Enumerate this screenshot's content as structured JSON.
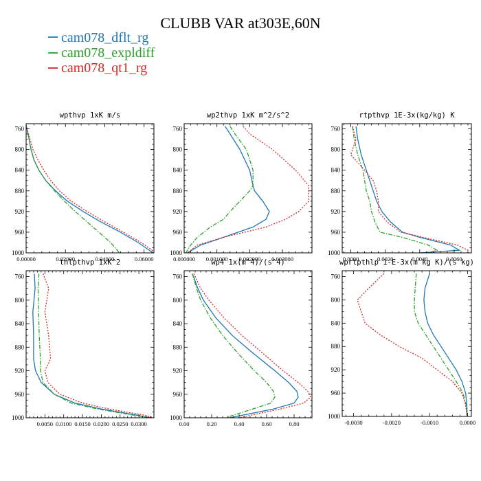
{
  "figure": {
    "title": "CLUBB VAR at303E,60N"
  },
  "legend": [
    {
      "label": "cam078_dflt_rg",
      "color": "#1f77b4",
      "dash": "solid"
    },
    {
      "label": "cam078_expldiff",
      "color": "#2ca02c",
      "dash": "dashdot"
    },
    {
      "label": "cam078_qt1_rg",
      "color": "#d62728",
      "dash": "dotted"
    }
  ],
  "chart_data": [
    {
      "type": "line",
      "title": "wpthvp  1xK m/s",
      "xlim": [
        0,
        0.065
      ],
      "ylim": [
        1000,
        750
      ],
      "yticks": [
        760,
        800,
        840,
        880,
        920,
        960,
        1000
      ],
      "xticks": [
        0.0,
        0.02,
        0.04,
        0.06
      ],
      "xtick_labels": [
        "0.00000",
        "0.02000",
        "0.04000",
        "0.06000"
      ],
      "y": [
        753,
        780,
        800,
        820,
        840,
        860,
        880,
        900,
        920,
        940,
        960,
        980,
        1000
      ],
      "series": [
        {
          "name": "cam078_dflt_rg",
          "values": [
            0.0,
            0.0015,
            0.0025,
            0.004,
            0.0065,
            0.01,
            0.015,
            0.021,
            0.029,
            0.038,
            0.048,
            0.057,
            0.0645
          ]
        },
        {
          "name": "cam078_expldiff",
          "values": [
            0.0,
            0.0015,
            0.0025,
            0.004,
            0.0065,
            0.01,
            0.0145,
            0.0195,
            0.025,
            0.031,
            0.037,
            0.043,
            0.0475
          ]
        },
        {
          "name": "cam078_qt1_rg",
          "values": [
            0.0,
            0.002,
            0.0035,
            0.006,
            0.009,
            0.0125,
            0.017,
            0.023,
            0.031,
            0.04,
            0.0495,
            0.0585,
            0.066
          ]
        }
      ]
    },
    {
      "type": "line",
      "title": "wp2thvp  1xK m^2/s^2",
      "xlim": [
        0,
        0.0039
      ],
      "ylim": [
        1000,
        750
      ],
      "yticks": [
        760,
        800,
        840,
        880,
        920,
        960,
        1000
      ],
      "xticks": [
        0.0,
        0.001,
        0.002,
        0.003
      ],
      "xtick_labels": [
        "0.000000",
        "0.001000",
        "0.002000",
        "0.003000"
      ],
      "y": [
        755,
        770,
        800,
        840,
        870,
        880,
        900,
        920,
        935,
        950,
        970,
        985,
        1000
      ],
      "series": [
        {
          "name": "cam078_dflt_rg",
          "values": [
            0.00125,
            0.0014,
            0.0017,
            0.002,
            0.0021,
            0.00215,
            0.0024,
            0.0026,
            0.0025,
            0.0021,
            0.0012,
            0.0005,
            0.0001
          ]
        },
        {
          "name": "cam078_expldiff",
          "values": [
            0.0014,
            0.00155,
            0.0019,
            0.0021,
            0.0021,
            0.002,
            0.0017,
            0.0014,
            0.0012,
            0.0008,
            0.0004,
            0.0002,
            5e-05
          ]
        },
        {
          "name": "cam078_qt1_rg",
          "values": [
            0.0018,
            0.002,
            0.0027,
            0.0034,
            0.0038,
            0.0038,
            0.0038,
            0.0035,
            0.0031,
            0.0025,
            0.0012,
            0.0004,
            0.0001
          ]
        }
      ]
    },
    {
      "type": "line",
      "title": "rtpthvp  1E-3x(kg/kg) K",
      "xlim": [
        -0.0005,
        0.007
      ],
      "ylim": [
        1000,
        750
      ],
      "yticks": [
        760,
        800,
        840,
        880,
        920,
        960,
        1000
      ],
      "xticks": [
        0.0,
        0.002,
        0.004,
        0.006
      ],
      "xtick_labels": [
        "0.0000",
        "0.0020",
        "0.0040",
        "0.0060"
      ],
      "y": [
        755,
        780,
        810,
        840,
        860,
        880,
        900,
        920,
        940,
        960,
        970,
        985,
        995,
        1000
      ],
      "series": [
        {
          "name": "cam078_dflt_rg",
          "values": [
            0.0003,
            0.0004,
            0.0006,
            0.0009,
            0.0011,
            0.0013,
            0.0015,
            0.0018,
            0.0023,
            0.003,
            0.004,
            0.0058,
            0.0063,
            0.004
          ]
        },
        {
          "name": "cam078_expldiff",
          "values": [
            0.0001,
            0.0002,
            0.0004,
            0.0007,
            0.0008,
            0.0009,
            0.0011,
            0.0012,
            0.0014,
            0.0017,
            0.003,
            0.0045,
            0.005,
            0.0045
          ]
        },
        {
          "name": "cam078_qt1_rg",
          "values": [
            0.0001,
            0.0003,
            0.0,
            0.0008,
            0.0013,
            0.0015,
            0.0016,
            0.0016,
            0.0021,
            0.0029,
            0.0042,
            0.0062,
            0.0068,
            0.0068
          ]
        }
      ]
    },
    {
      "type": "line",
      "title": "thlpthvp  1xK^2",
      "xlim": [
        0,
        0.034
      ],
      "ylim": [
        1000,
        750
      ],
      "yticks": [
        760,
        800,
        840,
        880,
        920,
        960,
        1000
      ],
      "xticks": [
        0.005,
        0.01,
        0.015,
        0.02,
        0.025,
        0.03
      ],
      "xtick_labels": [
        "0.0050",
        "0.0100",
        "0.0150",
        "0.0200",
        "0.0250",
        "0.0300"
      ],
      "y": [
        755,
        780,
        820,
        860,
        900,
        920,
        940,
        960,
        975,
        985,
        995,
        1000
      ],
      "series": [
        {
          "name": "cam078_dflt_rg",
          "values": [
            0.0022,
            0.0024,
            0.0018,
            0.002,
            0.002,
            0.0025,
            0.004,
            0.0075,
            0.013,
            0.02,
            0.029,
            0.033
          ]
        },
        {
          "name": "cam078_expldiff",
          "values": [
            0.0034,
            0.0032,
            0.0033,
            0.0035,
            0.0038,
            0.0038,
            0.0045,
            0.0075,
            0.012,
            0.019,
            0.028,
            0.033
          ]
        },
        {
          "name": "cam078_qt1_rg",
          "values": [
            0.0045,
            0.006,
            0.005,
            0.006,
            0.0065,
            0.005,
            0.0058,
            0.009,
            0.015,
            0.022,
            0.031,
            0.034
          ]
        }
      ]
    },
    {
      "type": "line",
      "title": "wp4  1x(m^4)/(s^4)",
      "xlim": [
        0,
        0.93
      ],
      "ylim": [
        1000,
        750
      ],
      "yticks": [
        760,
        800,
        840,
        880,
        920,
        960,
        1000
      ],
      "xticks": [
        0.0,
        0.2,
        0.4,
        0.6,
        0.8
      ],
      "xtick_labels": [
        "0.00",
        "0.20",
        "0.40",
        "0.60",
        "0.80"
      ],
      "y": [
        755,
        780,
        800,
        830,
        860,
        890,
        920,
        940,
        955,
        965,
        975,
        985,
        1000
      ],
      "series": [
        {
          "name": "cam078_dflt_rg",
          "values": [
            0.06,
            0.1,
            0.14,
            0.23,
            0.35,
            0.5,
            0.66,
            0.76,
            0.82,
            0.83,
            0.8,
            0.65,
            0.33
          ]
        },
        {
          "name": "cam078_expldiff",
          "values": [
            0.06,
            0.09,
            0.12,
            0.19,
            0.28,
            0.39,
            0.51,
            0.6,
            0.65,
            0.66,
            0.63,
            0.5,
            0.3
          ]
        },
        {
          "name": "cam078_qt1_rg",
          "values": [
            0.07,
            0.12,
            0.18,
            0.29,
            0.42,
            0.57,
            0.72,
            0.83,
            0.9,
            0.92,
            0.87,
            0.7,
            0.4
          ]
        }
      ]
    },
    {
      "type": "line",
      "title": "wprtpthlp  1-E-3x(m kg K)/(s kg)",
      "xlim": [
        -0.0033,
        0.0001
      ],
      "ylim": [
        1000,
        750
      ],
      "yticks": [
        760,
        800,
        840,
        880,
        920,
        960,
        1000
      ],
      "xticks": [
        -0.003,
        -0.002,
        -0.001,
        0.0
      ],
      "xtick_labels": [
        "-0.0030",
        "-0.0020",
        "-0.0010",
        "0.0000"
      ],
      "y": [
        755,
        780,
        800,
        820,
        840,
        860,
        880,
        900,
        920,
        940,
        960,
        980,
        1000
      ],
      "series": [
        {
          "name": "cam078_dflt_rg",
          "values": [
            -0.001,
            -0.00112,
            -0.00115,
            -0.00112,
            -0.00105,
            -0.0009,
            -0.0007,
            -0.0005,
            -0.0003,
            -0.00015,
            -5e-05,
            -2e-05,
            -1e-05
          ]
        },
        {
          "name": "cam078_expldiff",
          "values": [
            -0.00135,
            -0.00138,
            -0.0014,
            -0.0014,
            -0.0013,
            -0.0011,
            -0.0009,
            -0.0007,
            -0.0005,
            -0.0003,
            -0.00012,
            -4e-05,
            -1e-05
          ]
        },
        {
          "name": "cam078_qt1_rg",
          "values": [
            -0.0022,
            -0.0026,
            -0.0029,
            -0.0028,
            -0.0027,
            -0.0023,
            -0.0018,
            -0.0012,
            -0.0008,
            -0.0004,
            -0.00015,
            -5e-05,
            -2e-05
          ]
        }
      ]
    }
  ]
}
